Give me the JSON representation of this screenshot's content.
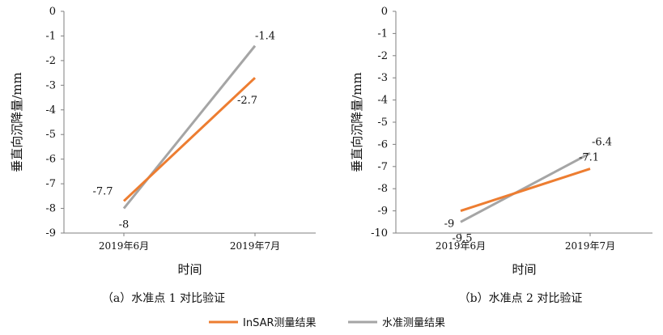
{
  "chart_data": [
    {
      "type": "line",
      "caption": "（a）水准点 1 对比验证",
      "xlabel": "时间",
      "ylabel": "垂直向沉降量/mm",
      "categories": [
        "2019年6月",
        "2019年7月"
      ],
      "ylim": [
        -9,
        0
      ],
      "yticks": [
        0,
        -1,
        -2,
        -3,
        -4,
        -5,
        -6,
        -7,
        -8,
        -9
      ],
      "series": [
        {
          "name": "InSAR测量结果",
          "color": "#ED7D31",
          "values": [
            -7.7,
            -2.7
          ]
        },
        {
          "name": "水准测量结果",
          "color": "#A5A5A5",
          "values": [
            -8,
            -1.4
          ]
        }
      ]
    },
    {
      "type": "line",
      "caption": "（b）水准点 2 对比验证",
      "xlabel": "时间",
      "ylabel": "垂直向沉降量/mm",
      "categories": [
        "2019年6月",
        "2019年7月"
      ],
      "ylim": [
        -10,
        0
      ],
      "yticks": [
        0,
        -1,
        -2,
        -3,
        -4,
        -5,
        -6,
        -7,
        -8,
        -9,
        -10
      ],
      "series": [
        {
          "name": "InSAR测量结果",
          "color": "#ED7D31",
          "values": [
            -9,
            -7.1
          ]
        },
        {
          "name": "水准测量结果",
          "color": "#A5A5A5",
          "values": [
            -9.5,
            -6.4
          ]
        }
      ]
    }
  ],
  "legend": [
    {
      "label": "InSAR测量结果",
      "color": "#ED7D31"
    },
    {
      "label": "水准测量结果",
      "color": "#A5A5A5"
    }
  ]
}
